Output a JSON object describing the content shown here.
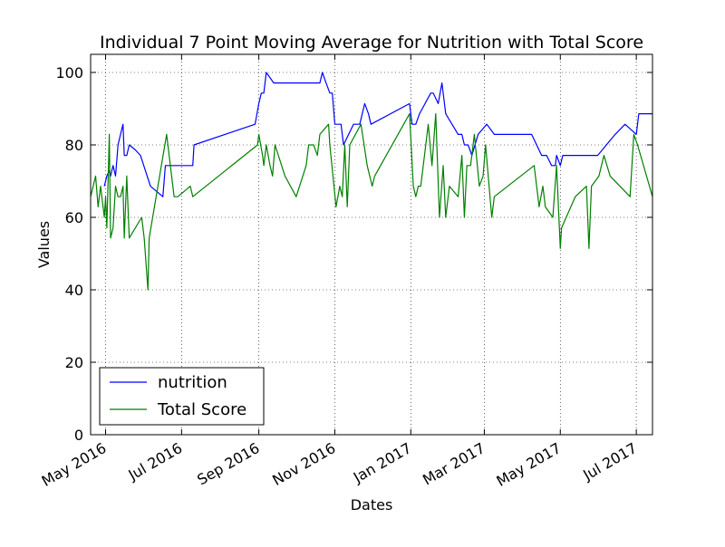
{
  "chart_data": {
    "type": "line",
    "title": "Individual 7 Point Moving Average for Nutrition with Total Score",
    "xlabel": "Dates",
    "ylabel": "Values",
    "ylim": [
      0,
      105
    ],
    "xlim": [
      "2016-04-19",
      "2017-07-14"
    ],
    "grid": true,
    "legend_position": "lower-left",
    "x_ticks": [
      {
        "date": "2016-05-01",
        "label": "May 2016"
      },
      {
        "date": "2016-07-01",
        "label": "Jul 2016"
      },
      {
        "date": "2016-09-01",
        "label": "Sep 2016"
      },
      {
        "date": "2016-11-01",
        "label": "Nov 2016"
      },
      {
        "date": "2017-01-01",
        "label": "Jan 2017"
      },
      {
        "date": "2017-03-01",
        "label": "Mar 2017"
      },
      {
        "date": "2017-05-01",
        "label": "May 2017"
      },
      {
        "date": "2017-07-01",
        "label": "Jul 2017"
      }
    ],
    "y_ticks": [
      0,
      20,
      40,
      60,
      80,
      100
    ],
    "series": [
      {
        "name": "nutrition",
        "color": "#0000ff",
        "points": [
          [
            "2016-04-30",
            68.6
          ],
          [
            "2016-05-02",
            71.4
          ],
          [
            "2016-05-04",
            72.9
          ],
          [
            "2016-05-05",
            71.4
          ],
          [
            "2016-05-07",
            74.3
          ],
          [
            "2016-05-09",
            71.4
          ],
          [
            "2016-05-11",
            80.0
          ],
          [
            "2016-05-13",
            82.9
          ],
          [
            "2016-05-15",
            85.7
          ],
          [
            "2016-05-16",
            77.1
          ],
          [
            "2016-05-18",
            77.1
          ],
          [
            "2016-05-20",
            80.0
          ],
          [
            "2016-05-25",
            78.6
          ],
          [
            "2016-05-29",
            77.1
          ],
          [
            "2016-06-06",
            68.6
          ],
          [
            "2016-06-16",
            65.7
          ],
          [
            "2016-06-18",
            74.3
          ],
          [
            "2016-06-25",
            74.3
          ],
          [
            "2016-07-10",
            74.3
          ],
          [
            "2016-07-11",
            80.0
          ],
          [
            "2016-08-29",
            85.7
          ],
          [
            "2016-09-01",
            91.4
          ],
          [
            "2016-09-03",
            94.3
          ],
          [
            "2016-09-05",
            94.3
          ],
          [
            "2016-09-07",
            100.0
          ],
          [
            "2016-09-13",
            97.1
          ],
          [
            "2016-10-20",
            97.1
          ],
          [
            "2016-10-22",
            100.0
          ],
          [
            "2016-10-25",
            97.1
          ],
          [
            "2016-10-28",
            94.3
          ],
          [
            "2016-10-30",
            94.3
          ],
          [
            "2016-11-01",
            85.7
          ],
          [
            "2016-11-06",
            85.7
          ],
          [
            "2016-11-08",
            80.0
          ],
          [
            "2016-11-16",
            85.7
          ],
          [
            "2016-11-21",
            85.7
          ],
          [
            "2016-11-25",
            91.4
          ],
          [
            "2016-11-28",
            88.6
          ],
          [
            "2016-11-30",
            85.7
          ],
          [
            "2016-12-31",
            91.4
          ],
          [
            "2017-01-02",
            85.7
          ],
          [
            "2017-01-05",
            85.7
          ],
          [
            "2017-01-08",
            88.6
          ],
          [
            "2017-01-17",
            94.3
          ],
          [
            "2017-01-19",
            94.3
          ],
          [
            "2017-01-23",
            91.4
          ],
          [
            "2017-01-26",
            97.1
          ],
          [
            "2017-01-29",
            88.6
          ],
          [
            "2017-02-08",
            82.9
          ],
          [
            "2017-02-11",
            82.9
          ],
          [
            "2017-02-13",
            80.0
          ],
          [
            "2017-02-16",
            80.0
          ],
          [
            "2017-02-19",
            77.1
          ],
          [
            "2017-02-24",
            82.9
          ],
          [
            "2017-03-03",
            85.7
          ],
          [
            "2017-03-09",
            82.9
          ],
          [
            "2017-04-08",
            82.9
          ],
          [
            "2017-04-12",
            80.0
          ],
          [
            "2017-04-16",
            77.1
          ],
          [
            "2017-04-20",
            77.1
          ],
          [
            "2017-04-24",
            74.3
          ],
          [
            "2017-04-27",
            74.3
          ],
          [
            "2017-04-28",
            77.1
          ],
          [
            "2017-05-01",
            74.3
          ],
          [
            "2017-05-03",
            77.1
          ],
          [
            "2017-05-31",
            77.1
          ],
          [
            "2017-06-14",
            82.9
          ],
          [
            "2017-06-22",
            85.7
          ],
          [
            "2017-07-01",
            82.9
          ],
          [
            "2017-07-03",
            88.6
          ],
          [
            "2017-07-14",
            88.6
          ]
        ]
      },
      {
        "name": "Total Score",
        "color": "#008000",
        "points": [
          [
            "2016-04-19",
            65.7
          ],
          [
            "2016-04-23",
            71.4
          ],
          [
            "2016-04-25",
            62.9
          ],
          [
            "2016-04-27",
            68.6
          ],
          [
            "2016-04-30",
            60.0
          ],
          [
            "2016-05-01",
            65.7
          ],
          [
            "2016-05-02",
            57.1
          ],
          [
            "2016-05-04",
            82.9
          ],
          [
            "2016-05-05",
            54.3
          ],
          [
            "2016-05-07",
            57.1
          ],
          [
            "2016-05-09",
            68.6
          ],
          [
            "2016-05-11",
            65.7
          ],
          [
            "2016-05-13",
            65.7
          ],
          [
            "2016-05-15",
            68.6
          ],
          [
            "2016-05-16",
            54.3
          ],
          [
            "2016-05-18",
            71.4
          ],
          [
            "2016-05-20",
            54.3
          ],
          [
            "2016-05-30",
            60.0
          ],
          [
            "2016-06-01",
            54.3
          ],
          [
            "2016-06-04",
            40.0
          ],
          [
            "2016-06-05",
            54.3
          ],
          [
            "2016-06-19",
            82.9
          ],
          [
            "2016-06-25",
            65.7
          ],
          [
            "2016-06-28",
            65.7
          ],
          [
            "2016-07-08",
            68.6
          ],
          [
            "2016-07-10",
            65.7
          ],
          [
            "2016-08-31",
            80.0
          ],
          [
            "2016-09-01",
            82.9
          ],
          [
            "2016-09-04",
            77.1
          ],
          [
            "2016-09-05",
            74.3
          ],
          [
            "2016-09-07",
            80.0
          ],
          [
            "2016-09-10",
            74.3
          ],
          [
            "2016-09-12",
            71.4
          ],
          [
            "2016-09-14",
            80.0
          ],
          [
            "2016-09-22",
            71.4
          ],
          [
            "2016-10-01",
            65.7
          ],
          [
            "2016-10-09",
            74.3
          ],
          [
            "2016-10-11",
            80.0
          ],
          [
            "2016-10-15",
            80.0
          ],
          [
            "2016-10-18",
            77.1
          ],
          [
            "2016-10-20",
            82.9
          ],
          [
            "2016-10-27",
            85.7
          ],
          [
            "2016-10-28",
            80.0
          ],
          [
            "2016-11-02",
            62.9
          ],
          [
            "2016-11-05",
            68.6
          ],
          [
            "2016-11-07",
            65.7
          ],
          [
            "2016-11-09",
            80.0
          ],
          [
            "2016-11-11",
            62.9
          ],
          [
            "2016-11-13",
            80.0
          ],
          [
            "2016-11-22",
            85.7
          ],
          [
            "2016-11-27",
            74.3
          ],
          [
            "2016-12-01",
            68.6
          ],
          [
            "2016-12-03",
            71.4
          ],
          [
            "2016-12-31",
            88.6
          ],
          [
            "2017-01-03",
            68.6
          ],
          [
            "2017-01-05",
            65.7
          ],
          [
            "2017-01-07",
            68.6
          ],
          [
            "2017-01-09",
            68.6
          ],
          [
            "2017-01-15",
            85.7
          ],
          [
            "2017-01-18",
            74.3
          ],
          [
            "2017-01-21",
            88.6
          ],
          [
            "2017-01-24",
            60.0
          ],
          [
            "2017-01-27",
            74.3
          ],
          [
            "2017-01-29",
            60.0
          ],
          [
            "2017-02-01",
            68.6
          ],
          [
            "2017-02-08",
            65.7
          ],
          [
            "2017-02-11",
            77.1
          ],
          [
            "2017-02-13",
            60.0
          ],
          [
            "2017-02-15",
            74.3
          ],
          [
            "2017-02-18",
            74.3
          ],
          [
            "2017-02-21",
            82.9
          ],
          [
            "2017-02-25",
            68.6
          ],
          [
            "2017-02-28",
            71.4
          ],
          [
            "2017-03-02",
            80.0
          ],
          [
            "2017-03-07",
            60.0
          ],
          [
            "2017-03-09",
            65.7
          ],
          [
            "2017-04-10",
            74.3
          ],
          [
            "2017-04-14",
            62.9
          ],
          [
            "2017-04-17",
            68.6
          ],
          [
            "2017-04-19",
            62.9
          ],
          [
            "2017-04-25",
            60.0
          ],
          [
            "2017-04-28",
            74.3
          ],
          [
            "2017-05-01",
            51.4
          ],
          [
            "2017-05-02",
            57.1
          ],
          [
            "2017-05-13",
            65.7
          ],
          [
            "2017-05-22",
            68.6
          ],
          [
            "2017-05-24",
            51.4
          ],
          [
            "2017-05-26",
            68.6
          ],
          [
            "2017-06-01",
            71.4
          ],
          [
            "2017-06-05",
            77.1
          ],
          [
            "2017-06-10",
            71.4
          ],
          [
            "2017-06-26",
            65.7
          ],
          [
            "2017-06-29",
            82.9
          ],
          [
            "2017-07-02",
            80.0
          ],
          [
            "2017-07-14",
            65.7
          ]
        ]
      }
    ]
  }
}
